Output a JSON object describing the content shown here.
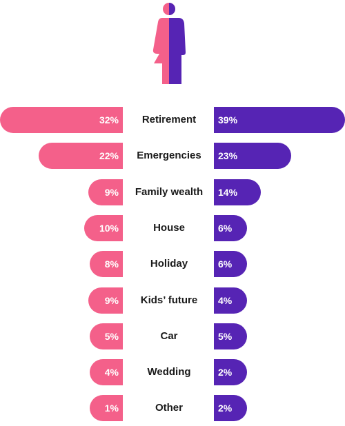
{
  "colors": {
    "women": "#f4608a",
    "men": "#5624b4"
  },
  "icon": "man-woman-split-icon",
  "chart_data": {
    "type": "bar",
    "orientation": "horizontal-diverging",
    "categories": [
      "Retirement",
      "Emergencies",
      "Family wealth",
      "House",
      "Holiday",
      "Kids’ future",
      "Car",
      "Wedding",
      "Other"
    ],
    "series": [
      {
        "values": [
          32,
          22,
          9,
          10,
          8,
          9,
          5,
          4,
          1
        ],
        "labels": [
          "32%",
          "22%",
          "9%",
          "10%",
          "8%",
          "9%",
          "5%",
          "4%",
          "1%"
        ],
        "color": "#f4608a",
        "side": "left"
      },
      {
        "values": [
          39,
          23,
          14,
          6,
          6,
          4,
          5,
          2,
          2
        ],
        "labels": [
          "39%",
          "23%",
          "14%",
          "6%",
          "6%",
          "4%",
          "5%",
          "2%",
          "2%"
        ],
        "color": "#5624b4",
        "side": "right"
      }
    ],
    "unit": "%"
  }
}
